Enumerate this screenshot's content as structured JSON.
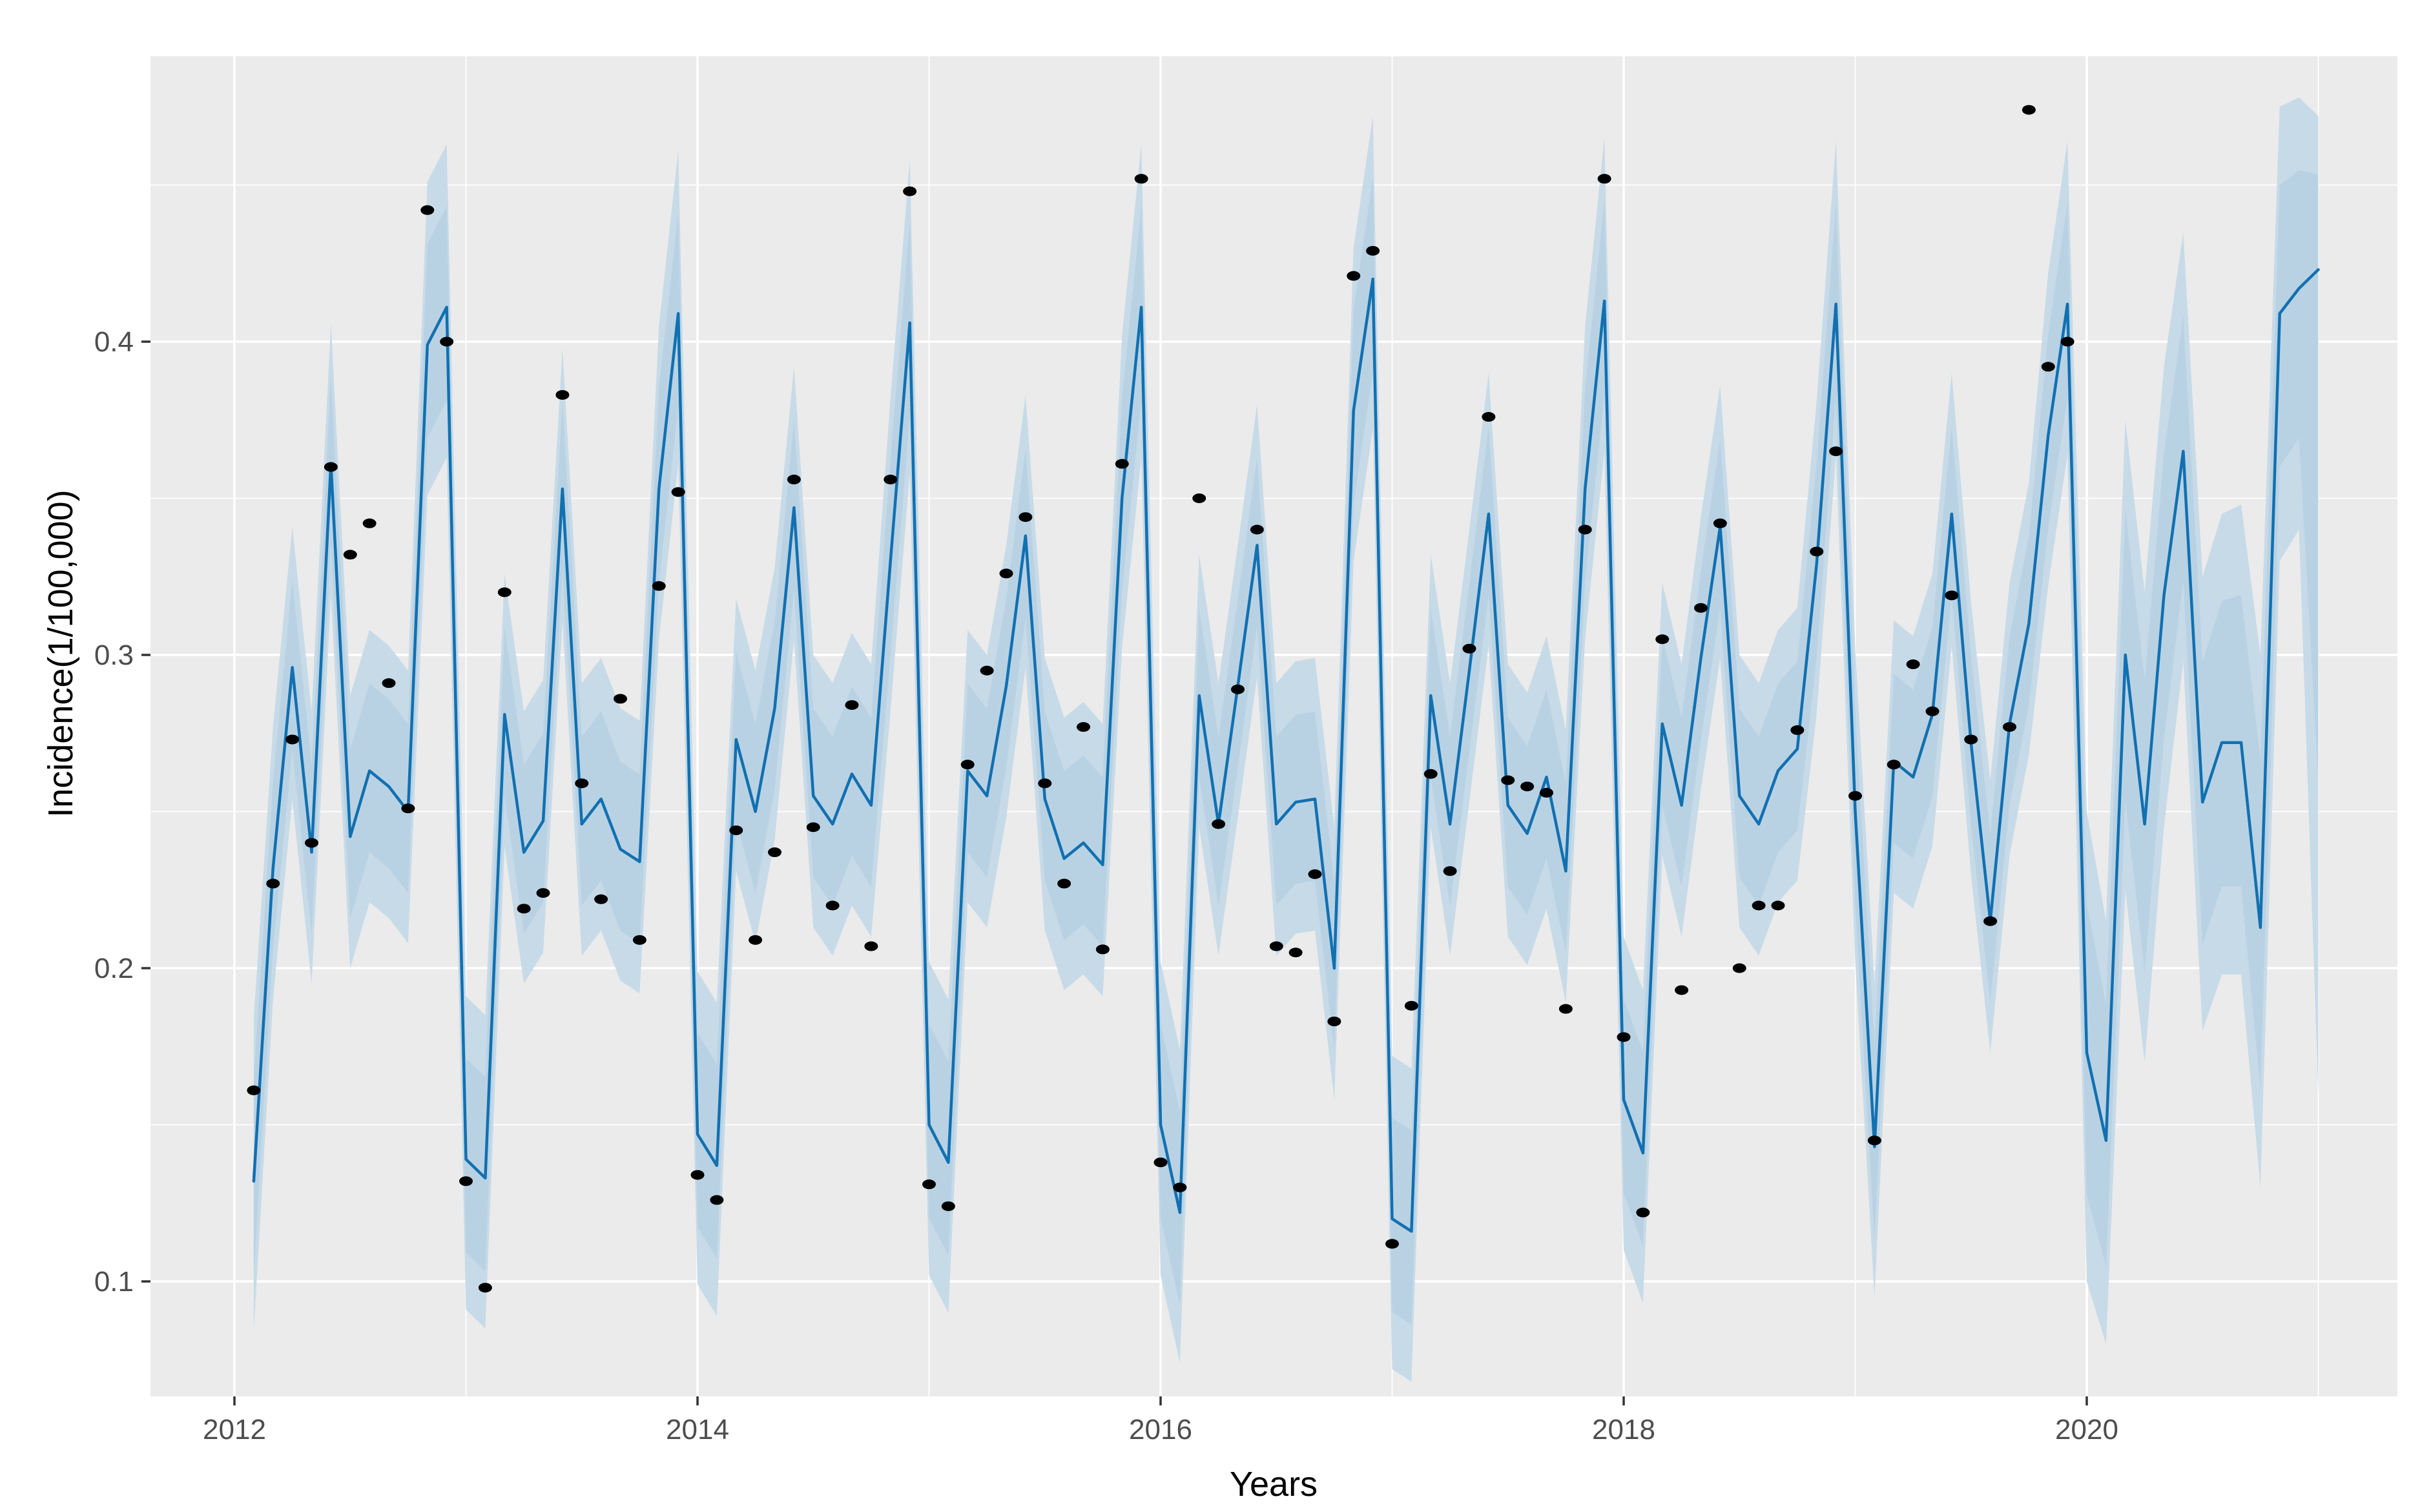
{
  "chart_data": {
    "type": "line",
    "title": "",
    "xlabel": "Years",
    "ylabel": "Incidence(1/100,000)",
    "legend": "none",
    "grid": "on",
    "panel_bg": "#EBEBEB",
    "grid_color": "#FFFFFF",
    "line_color": "#1170B1",
    "ribbon_outer_color": "#C7DAE8",
    "ribbon_inner_color": "#B9D2E3",
    "point_color": "#000000",
    "tick_color": "#333333",
    "tick_label_color": "#4D4D4D",
    "xlim": [
      2011.637,
      2021.342
    ],
    "ylim": [
      0.0633,
      0.4911
    ],
    "x_major_ticks": [
      2012,
      2014,
      2016,
      2018,
      2020
    ],
    "x_tick_labels": [
      "2012",
      "2014",
      "2016",
      "2018",
      "2020"
    ],
    "x_minor_ticks": [
      2013,
      2015,
      2017,
      2019,
      2021
    ],
    "y_major_ticks": [
      0.1,
      0.2,
      0.3,
      0.4
    ],
    "y_tick_labels": [
      "0.1",
      "0.2",
      "0.3",
      "0.4"
    ],
    "y_minor_ticks": [
      0.15,
      0.25,
      0.35,
      0.45
    ],
    "series": {
      "start_year": 2012,
      "first_point_month_index": 1,
      "months_per_year": 12,
      "fitted": [
        0.132,
        0.232,
        0.296,
        0.237,
        0.361,
        0.242,
        0.263,
        0.258,
        0.25,
        0.399,
        0.411,
        0.139,
        0.133,
        0.281,
        0.237,
        0.247,
        0.353,
        0.246,
        0.254,
        0.238,
        0.234,
        0.353,
        0.409,
        0.147,
        0.137,
        0.273,
        0.25,
        0.283,
        0.347,
        0.255,
        0.246,
        0.262,
        0.252,
        0.33,
        0.406,
        0.15,
        0.138,
        0.263,
        0.255,
        0.29,
        0.338,
        0.254,
        0.235,
        0.24,
        0.233,
        0.35,
        0.411,
        0.15,
        0.122,
        0.287,
        0.246,
        0.29,
        0.335,
        0.246,
        0.253,
        0.254,
        0.2,
        0.378,
        0.42,
        0.12,
        0.116,
        0.287,
        0.246,
        0.295,
        0.345,
        0.252,
        0.243,
        0.261,
        0.231,
        0.353,
        0.413,
        0.158,
        0.141,
        0.278,
        0.252,
        0.299,
        0.341,
        0.255,
        0.246,
        0.263,
        0.27,
        0.329,
        0.412,
        0.25,
        0.143,
        0.266,
        0.261,
        0.281,
        0.345,
        0.272,
        0.215,
        0.278,
        0.31,
        0.37,
        0.412,
        0.173,
        0.145,
        0.3,
        0.246,
        0.319,
        0.365,
        0.253,
        0.272,
        0.272,
        0.213,
        0.409,
        0.417,
        0.423
      ],
      "ribbon_lo": [
        0.084,
        0.19,
        0.254,
        0.195,
        0.319,
        0.2,
        0.221,
        0.216,
        0.208,
        0.351,
        0.363,
        0.091,
        0.085,
        0.239,
        0.195,
        0.205,
        0.311,
        0.204,
        0.212,
        0.196,
        0.192,
        0.305,
        0.361,
        0.099,
        0.089,
        0.231,
        0.208,
        0.241,
        0.305,
        0.213,
        0.204,
        0.22,
        0.21,
        0.282,
        0.358,
        0.102,
        0.09,
        0.221,
        0.213,
        0.248,
        0.296,
        0.212,
        0.193,
        0.198,
        0.191,
        0.302,
        0.363,
        0.102,
        0.074,
        0.245,
        0.204,
        0.248,
        0.293,
        0.204,
        0.211,
        0.212,
        0.158,
        0.33,
        0.372,
        0.072,
        0.068,
        0.245,
        0.204,
        0.253,
        0.303,
        0.21,
        0.201,
        0.219,
        0.189,
        0.305,
        0.365,
        0.11,
        0.093,
        0.236,
        0.21,
        0.257,
        0.299,
        0.213,
        0.204,
        0.221,
        0.228,
        0.281,
        0.364,
        0.202,
        0.095,
        0.224,
        0.219,
        0.239,
        0.303,
        0.23,
        0.173,
        0.236,
        0.268,
        0.322,
        0.364,
        0.1,
        0.08,
        0.225,
        0.17,
        0.245,
        0.298,
        0.18,
        0.198,
        0.198,
        0.13,
        0.33,
        0.34,
        0.16
      ],
      "ribbon_hi": [
        0.184,
        0.277,
        0.341,
        0.282,
        0.406,
        0.287,
        0.308,
        0.303,
        0.295,
        0.451,
        0.463,
        0.191,
        0.185,
        0.326,
        0.282,
        0.292,
        0.398,
        0.291,
        0.299,
        0.283,
        0.279,
        0.405,
        0.461,
        0.199,
        0.189,
        0.318,
        0.295,
        0.328,
        0.392,
        0.3,
        0.291,
        0.307,
        0.297,
        0.382,
        0.458,
        0.202,
        0.19,
        0.308,
        0.3,
        0.335,
        0.383,
        0.299,
        0.28,
        0.285,
        0.278,
        0.402,
        0.463,
        0.202,
        0.174,
        0.332,
        0.291,
        0.335,
        0.38,
        0.291,
        0.298,
        0.299,
        0.245,
        0.43,
        0.472,
        0.172,
        0.168,
        0.332,
        0.291,
        0.34,
        0.39,
        0.297,
        0.288,
        0.306,
        0.276,
        0.405,
        0.465,
        0.21,
        0.193,
        0.323,
        0.297,
        0.344,
        0.386,
        0.3,
        0.291,
        0.308,
        0.315,
        0.381,
        0.464,
        0.302,
        0.195,
        0.311,
        0.306,
        0.326,
        0.39,
        0.317,
        0.26,
        0.323,
        0.355,
        0.422,
        0.464,
        0.25,
        0.215,
        0.375,
        0.32,
        0.392,
        0.435,
        0.325,
        0.345,
        0.348,
        0.3,
        0.475,
        0.478,
        0.472
      ],
      "observed": [
        0.161,
        0.227,
        0.273,
        0.24,
        0.36,
        0.332,
        0.342,
        0.291,
        0.251,
        0.442,
        0.4,
        0.132,
        0.098,
        0.32,
        0.219,
        0.224,
        0.383,
        0.259,
        0.222,
        0.286,
        0.209,
        0.322,
        0.352,
        0.134,
        0.126,
        0.244,
        0.209,
        0.237,
        0.356,
        0.245,
        0.22,
        0.284,
        0.207,
        0.356,
        0.448,
        0.131,
        0.124,
        0.265,
        0.295,
        0.326,
        0.344,
        0.259,
        0.227,
        0.277,
        0.206,
        0.361,
        0.452,
        0.138,
        0.13,
        0.35,
        0.246,
        0.289,
        0.34,
        0.207,
        0.205,
        0.23,
        0.183,
        0.421,
        0.429,
        0.112,
        0.188,
        0.262,
        0.231,
        0.302,
        0.376,
        0.26,
        0.258,
        0.256,
        0.187,
        0.34,
        0.452,
        0.178,
        0.122,
        0.305,
        0.193,
        0.315,
        0.342,
        0.2,
        0.22,
        0.22,
        0.276,
        0.333,
        0.365,
        0.255,
        0.145,
        0.265,
        0.297,
        0.282,
        0.319,
        0.273,
        0.215,
        0.277,
        0.474,
        0.392,
        0.4
      ]
    }
  },
  "layout_note": "fitted/ribbon run Feb 2012 - Jan 2021; observed dots run Feb 2012 - Dec 2019"
}
